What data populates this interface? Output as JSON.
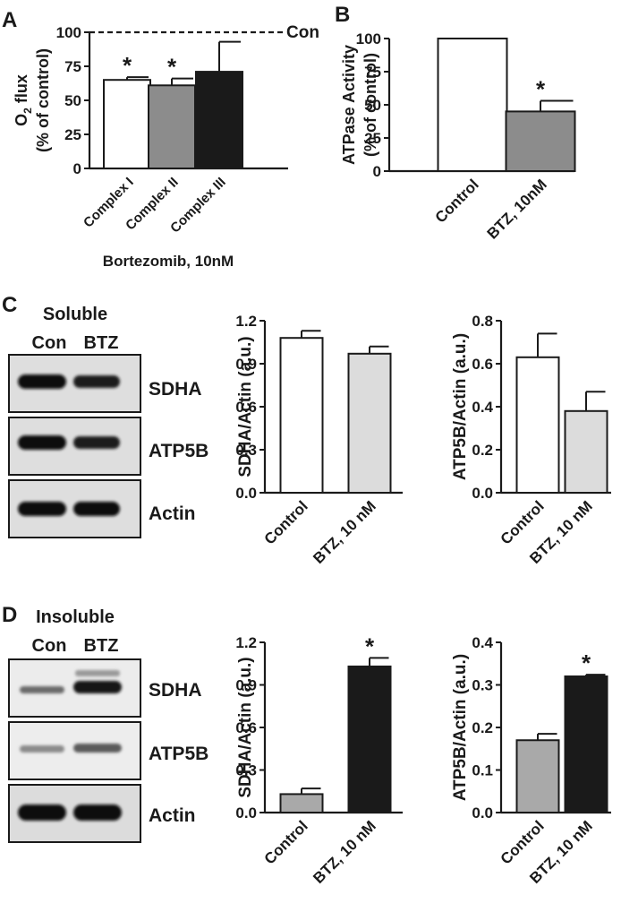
{
  "colors": {
    "white": "#ffffff",
    "gray": "#8c8c8c",
    "light_gray": "#dcdcdc",
    "mid_gray": "#a9a9a9",
    "black": "#1a1a1a"
  },
  "panels": {
    "A": {
      "letter": "A"
    },
    "B": {
      "letter": "B"
    },
    "C": {
      "letter": "C",
      "blot_title": "Soluble",
      "lanes": [
        "Con",
        "BTZ"
      ],
      "bands": [
        "SDHA",
        "ATP5B",
        "Actin"
      ]
    },
    "D": {
      "letter": "D",
      "blot_title": "Insoluble",
      "lanes": [
        "Con",
        "BTZ"
      ],
      "bands": [
        "SDHA",
        "ATP5B",
        "Actin"
      ]
    }
  },
  "chart_data": [
    {
      "id": "A",
      "type": "bar",
      "categories": [
        "Complex I",
        "Complex II",
        "Complex III"
      ],
      "values": [
        65,
        61,
        71
      ],
      "errors": [
        2,
        5,
        22
      ],
      "fills": [
        "white",
        "gray",
        "black"
      ],
      "significance": [
        "*",
        "*",
        ""
      ],
      "xlabel": "Bortezomib, 10nM",
      "ylabel_lines": [
        "O2 flux",
        "(% of control)"
      ],
      "ylim": [
        0,
        100
      ],
      "yticks": [
        "0",
        "25",
        "50",
        "75",
        "100"
      ],
      "reference_line": {
        "value": 100,
        "label": "Con",
        "style": "dashed"
      }
    },
    {
      "id": "B",
      "type": "bar",
      "categories": [
        "Control",
        "BTZ, 10nM"
      ],
      "values": [
        100,
        45
      ],
      "errors": [
        0,
        8
      ],
      "fills": [
        "white",
        "gray"
      ],
      "significance": [
        "",
        "*"
      ],
      "ylabel_lines": [
        "ATPase Activity",
        "(% of control)"
      ],
      "ylim": [
        0,
        100
      ],
      "yticks": [
        "0",
        "25",
        "50",
        "75",
        "100"
      ]
    },
    {
      "id": "C1",
      "type": "bar",
      "categories": [
        "Control",
        "BTZ, 10 nM"
      ],
      "values": [
        1.08,
        0.97
      ],
      "errors": [
        0.05,
        0.05
      ],
      "fills": [
        "white",
        "light_gray"
      ],
      "significance": [
        "",
        ""
      ],
      "ylabel": "SDHA/Actin (a.u.)",
      "ylim": [
        0,
        1.2
      ],
      "yticks": [
        "0.0",
        "0.3",
        "0.6",
        "0.9",
        "1.2"
      ]
    },
    {
      "id": "C2",
      "type": "bar",
      "categories": [
        "Control",
        "BTZ, 10 nM"
      ],
      "values": [
        0.63,
        0.38
      ],
      "errors": [
        0.11,
        0.09
      ],
      "fills": [
        "white",
        "light_gray"
      ],
      "significance": [
        "",
        ""
      ],
      "ylabel": "ATP5B/Actin (a.u.)",
      "ylim": [
        0,
        0.8
      ],
      "yticks": [
        "0.0",
        "0.2",
        "0.4",
        "0.6",
        "0.8"
      ]
    },
    {
      "id": "D1",
      "type": "bar",
      "categories": [
        "Control",
        "BTZ, 10 nM"
      ],
      "values": [
        0.13,
        1.03
      ],
      "errors": [
        0.04,
        0.06
      ],
      "fills": [
        "mid_gray",
        "black"
      ],
      "significance": [
        "",
        "*"
      ],
      "ylabel": "SDHA/Actin (a.u.)",
      "ylim": [
        0,
        1.2
      ],
      "yticks": [
        "0.0",
        "0.3",
        "0.6",
        "0.9",
        "1.2"
      ]
    },
    {
      "id": "D2",
      "type": "bar",
      "categories": [
        "Control",
        "BTZ, 10 nM"
      ],
      "values": [
        0.17,
        0.32
      ],
      "errors": [
        0.015,
        0.004
      ],
      "fills": [
        "mid_gray",
        "black"
      ],
      "significance": [
        "",
        "*"
      ],
      "ylabel": "ATP5B/Actin (a.u.)",
      "ylim": [
        0,
        0.4
      ],
      "yticks": [
        "0.0",
        "0.1",
        "0.2",
        "0.3",
        "0.4"
      ]
    }
  ]
}
